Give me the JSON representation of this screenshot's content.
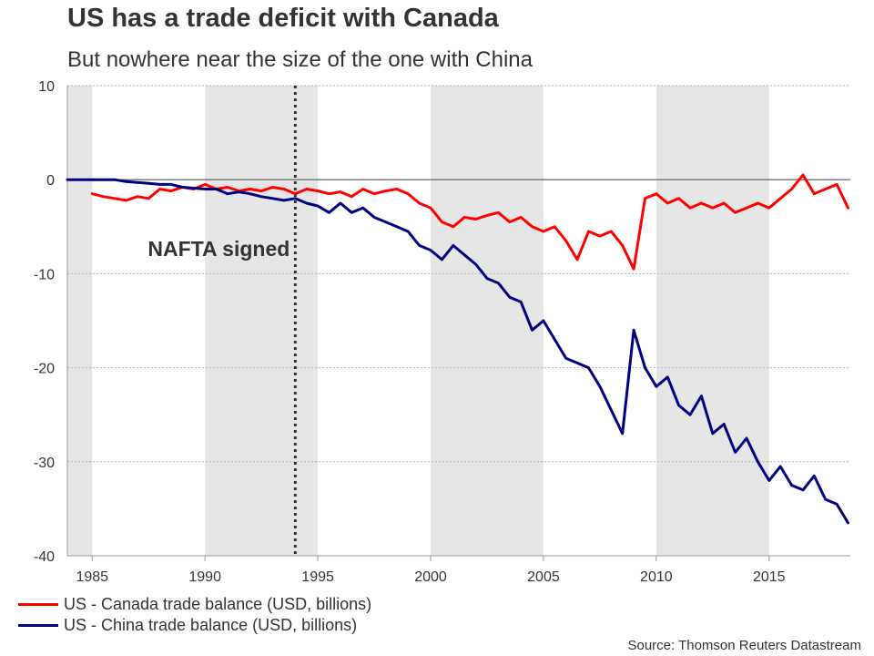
{
  "header": {
    "title": "US has a trade deficit with Canada",
    "subtitle": "But nowhere near the size of the one with China"
  },
  "source": "Source: Thomson Reuters Datastream",
  "colors": {
    "canada": "#ff0000",
    "china": "#000080",
    "shade": "#e6e6e6",
    "grid": "#b4b4b4",
    "zero": "#555555"
  },
  "chart_data": {
    "type": "line",
    "title": "US has a trade deficit with Canada",
    "subtitle": "But nowhere near the size of the one with China",
    "xlabel": "",
    "ylabel": "",
    "xlim": [
      1983.9,
      2018.6
    ],
    "ylim": [
      -40,
      10
    ],
    "grid": true,
    "legend_position": "bottom-left",
    "x_ticks": [
      1985,
      1990,
      1995,
      2000,
      2005,
      2010,
      2015
    ],
    "y_ticks": [
      10,
      0,
      -10,
      -20,
      -30,
      -40
    ],
    "shaded_periods": [
      [
        1983.9,
        1985
      ],
      [
        1990,
        1995
      ],
      [
        2000,
        2005
      ],
      [
        2010,
        2015
      ]
    ],
    "annotation": {
      "label": "NAFTA signed",
      "x": 1994
    },
    "series": [
      {
        "name": "US - Canada trade balance (USD, billions)",
        "x": [
          1985,
          1985.5,
          1986,
          1986.5,
          1987,
          1987.5,
          1988,
          1988.5,
          1989,
          1989.5,
          1990,
          1990.5,
          1991,
          1991.5,
          1992,
          1992.5,
          1993,
          1993.5,
          1994,
          1994.5,
          1995,
          1995.5,
          1996,
          1996.5,
          1997,
          1997.5,
          1998,
          1998.5,
          1999,
          1999.5,
          2000,
          2000.5,
          2001,
          2001.5,
          2002,
          2002.5,
          2003,
          2003.5,
          2004,
          2004.5,
          2005,
          2005.5,
          2006,
          2006.5,
          2007,
          2007.5,
          2008,
          2008.5,
          2009,
          2009.5,
          2010,
          2010.5,
          2011,
          2011.5,
          2012,
          2012.5,
          2013,
          2013.5,
          2014,
          2014.5,
          2015,
          2015.5,
          2016,
          2016.5,
          2017,
          2017.5,
          2018,
          2018.5
        ],
        "values": [
          -1.5,
          -1.8,
          -2.0,
          -2.2,
          -1.8,
          -2.0,
          -1.0,
          -1.2,
          -0.8,
          -1.0,
          -0.5,
          -1.0,
          -0.8,
          -1.2,
          -1.0,
          -1.2,
          -0.8,
          -1.0,
          -1.5,
          -1.0,
          -1.2,
          -1.5,
          -1.3,
          -1.8,
          -1.0,
          -1.5,
          -1.2,
          -1.0,
          -1.5,
          -2.5,
          -3.0,
          -4.5,
          -5.0,
          -4.0,
          -4.2,
          -3.8,
          -3.5,
          -4.5,
          -4.0,
          -5.0,
          -5.5,
          -5.0,
          -6.5,
          -8.5,
          -5.5,
          -6.0,
          -5.5,
          -7.0,
          -9.5,
          -2.0,
          -1.5,
          -2.5,
          -2.0,
          -3.0,
          -2.5,
          -3.0,
          -2.5,
          -3.5,
          -3.0,
          -2.5,
          -3.0,
          -2.0,
          -1.0,
          0.5,
          -1.5,
          -1.0,
          -0.5,
          -3.0
        ]
      },
      {
        "name": "US - China trade balance (USD, billions)",
        "x": [
          1983.9,
          1984.5,
          1985,
          1985.5,
          1986,
          1986.5,
          1987,
          1987.5,
          1988,
          1988.5,
          1989,
          1989.5,
          1990,
          1990.5,
          1991,
          1991.5,
          1992,
          1992.5,
          1993,
          1993.5,
          1994,
          1994.5,
          1995,
          1995.5,
          1996,
          1996.5,
          1997,
          1997.5,
          1998,
          1998.5,
          1999,
          1999.5,
          2000,
          2000.5,
          2001,
          2001.5,
          2002,
          2002.5,
          2003,
          2003.5,
          2004,
          2004.5,
          2005,
          2005.5,
          2006,
          2006.5,
          2007,
          2007.5,
          2008,
          2008.5,
          2009,
          2009.5,
          2010,
          2010.5,
          2011,
          2011.5,
          2012,
          2012.5,
          2013,
          2013.5,
          2014,
          2014.5,
          2015,
          2015.5,
          2016,
          2016.5,
          2017,
          2017.5,
          2018,
          2018.5
        ],
        "values": [
          0.0,
          0.0,
          0.0,
          0.0,
          0.0,
          -0.2,
          -0.3,
          -0.4,
          -0.5,
          -0.5,
          -0.8,
          -0.9,
          -1.0,
          -1.0,
          -1.5,
          -1.3,
          -1.5,
          -1.8,
          -2.0,
          -2.2,
          -2.0,
          -2.5,
          -2.8,
          -3.5,
          -2.5,
          -3.5,
          -3.0,
          -4.0,
          -4.5,
          -5.0,
          -5.5,
          -7.0,
          -7.5,
          -8.5,
          -7.0,
          -8.0,
          -9.0,
          -10.5,
          -11.0,
          -12.5,
          -13.0,
          -16.0,
          -15.0,
          -17.0,
          -19.0,
          -19.5,
          -20.0,
          -22.0,
          -24.5,
          -27.0,
          -16.0,
          -20.0,
          -22.0,
          -21.0,
          -24.0,
          -25.0,
          -23.0,
          -27.0,
          -26.0,
          -29.0,
          -27.5,
          -30.0,
          -32.0,
          -30.5,
          -32.5,
          -33.0,
          -31.5,
          -34.0,
          -34.5,
          -36.5
        ]
      }
    ]
  }
}
